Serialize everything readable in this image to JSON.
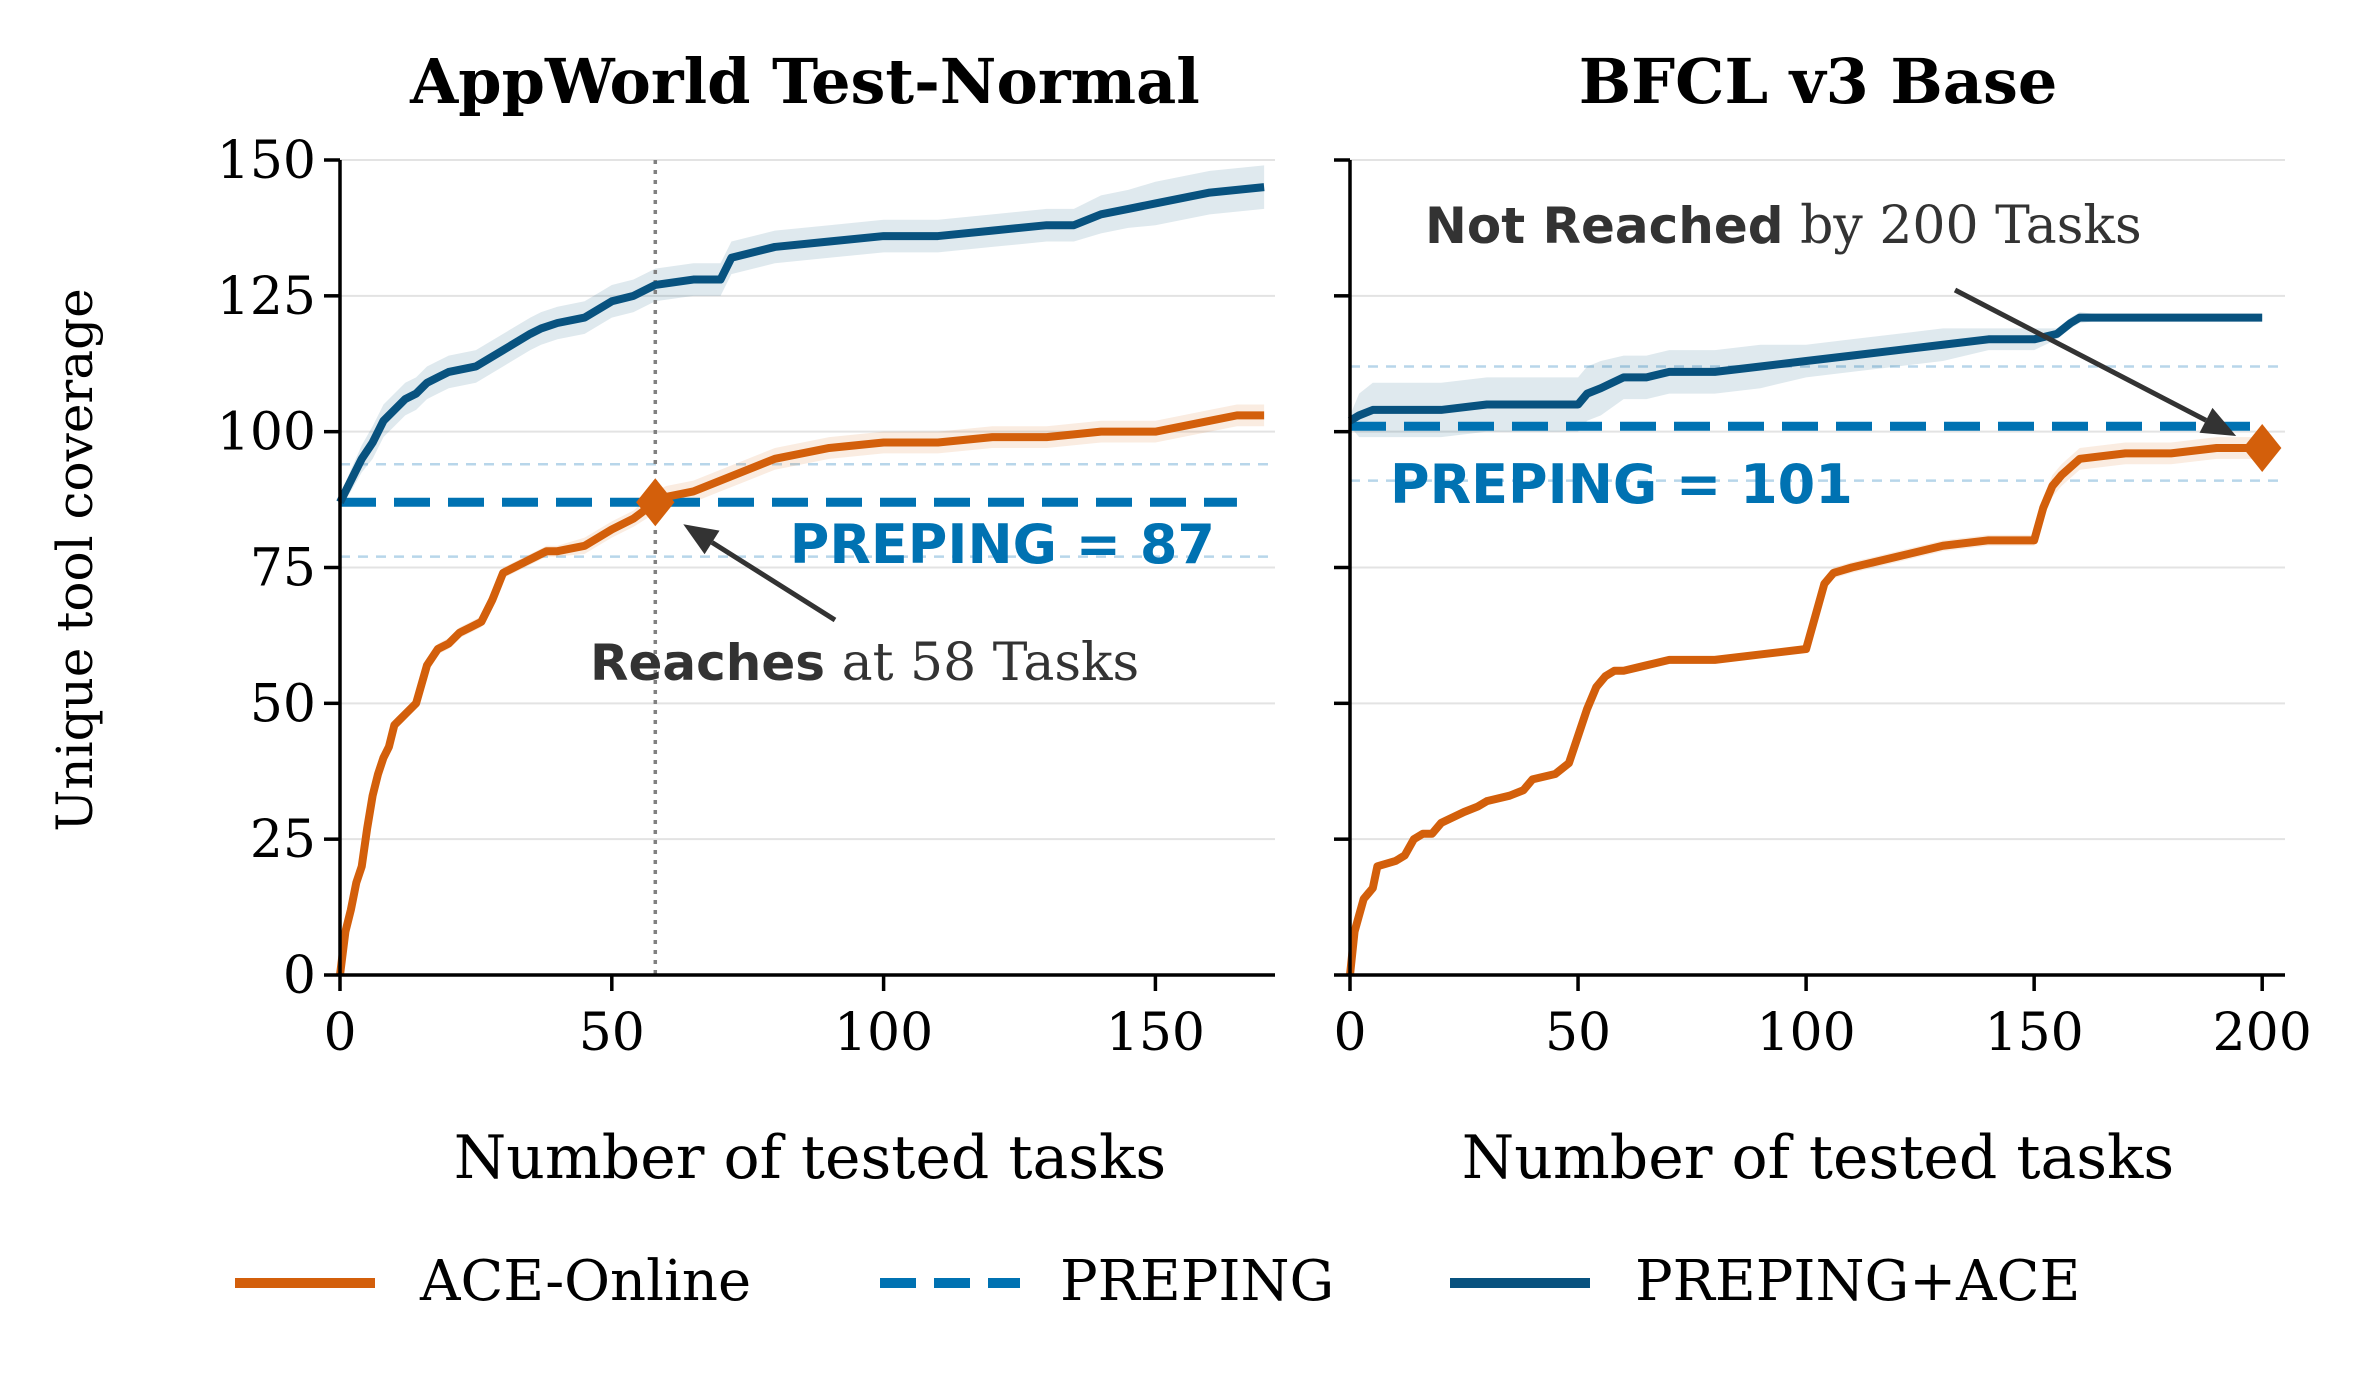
{
  "y_axis_label": "Unique tool coverage",
  "chart_data": [
    {
      "type": "line",
      "title": "AppWorld Test-Normal",
      "xlabel": "Number of tested tasks",
      "ylabel": "Unique tool coverage",
      "xlim": [
        0,
        172
      ],
      "ylim": [
        0,
        150
      ],
      "xticks": [
        0,
        50,
        100,
        150
      ],
      "yticks": [
        0,
        25,
        50,
        75,
        100,
        125,
        150
      ],
      "grid": "horizontal",
      "series": [
        {
          "name": "ACE-Online",
          "color": "#D35F0B",
          "style": "solid",
          "x": [
            0,
            1,
            2,
            3,
            4,
            5,
            6,
            7,
            8,
            9,
            10,
            11,
            12,
            14,
            16,
            18,
            20,
            22,
            24,
            26,
            28,
            30,
            32,
            34,
            36,
            38,
            40,
            45,
            50,
            54,
            58,
            60,
            65,
            70,
            75,
            80,
            90,
            100,
            110,
            120,
            130,
            140,
            150,
            160,
            165,
            170
          ],
          "y": [
            0,
            8,
            12,
            17,
            20,
            27,
            33,
            37,
            40,
            42,
            46,
            47,
            48,
            50,
            57,
            60,
            61,
            63,
            64,
            65,
            69,
            74,
            75,
            76,
            77,
            78,
            78,
            79,
            82,
            84,
            87,
            88,
            89,
            91,
            93,
            95,
            97,
            98,
            98,
            99,
            99,
            100,
            100,
            102,
            103,
            103
          ],
          "band": [
            0,
            1,
            1,
            1,
            1,
            1,
            1,
            1,
            1,
            1,
            1,
            1,
            1,
            1,
            1,
            1,
            1,
            1,
            1,
            1,
            1,
            1,
            1,
            1,
            1,
            1,
            1,
            1.5,
            1.5,
            1.5,
            2,
            2,
            2,
            2,
            2,
            2,
            2,
            2,
            2,
            2,
            2,
            2,
            2,
            2,
            2,
            2
          ]
        },
        {
          "name": "PREPING",
          "color": "#0072B2",
          "style": "dashed",
          "x": [
            0,
            165
          ],
          "y": [
            87,
            87
          ],
          "band_lines": [
            94,
            77
          ]
        },
        {
          "name": "PREPING+ACE",
          "color": "#08527F",
          "style": "solid",
          "x": [
            0,
            2,
            4,
            6,
            8,
            10,
            12,
            14,
            16,
            18,
            20,
            25,
            30,
            35,
            37,
            40,
            45,
            50,
            54,
            58,
            65,
            70,
            72,
            80,
            90,
            100,
            110,
            120,
            130,
            135,
            140,
            145,
            150,
            160,
            170
          ],
          "y": [
            87,
            91,
            95,
            98,
            102,
            104,
            106,
            107,
            109,
            110,
            111,
            112,
            115,
            118,
            119,
            120,
            121,
            124,
            125,
            127,
            128,
            128,
            132,
            134,
            135,
            136,
            136,
            137,
            138,
            138,
            140,
            141,
            142,
            144,
            145
          ],
          "band": [
            1,
            2,
            2.5,
            3,
            3,
            3,
            3,
            3,
            3,
            3,
            3,
            3,
            3,
            3,
            3,
            3,
            3,
            3,
            3,
            3,
            3,
            3,
            3,
            3,
            3,
            3,
            3,
            3,
            3,
            3,
            3.5,
            3.5,
            4,
            4,
            4
          ]
        }
      ],
      "marker": {
        "x": 58,
        "y": 87
      },
      "vline_x": 58,
      "preping_label": "PREPING = 87",
      "annotation": {
        "bold": "Reaches",
        "rest": " at 58 Tasks"
      }
    },
    {
      "type": "line",
      "title": "BFCL v3 Base",
      "xlabel": "Number of tested tasks",
      "xlim": [
        0,
        205
      ],
      "ylim": [
        0,
        150
      ],
      "xticks": [
        0,
        50,
        100,
        150,
        200
      ],
      "yticks": [
        0,
        25,
        50,
        75,
        100,
        125,
        150
      ],
      "grid": "horizontal",
      "series": [
        {
          "name": "ACE-Online",
          "color": "#D35F0B",
          "style": "solid",
          "x": [
            0,
            1,
            2,
            3,
            4,
            5,
            6,
            10,
            12,
            14,
            16,
            18,
            20,
            25,
            28,
            30,
            35,
            38,
            40,
            45,
            48,
            50,
            52,
            54,
            56,
            58,
            60,
            65,
            70,
            80,
            90,
            100,
            102,
            104,
            106,
            110,
            120,
            130,
            140,
            150,
            152,
            154,
            156,
            160,
            170,
            180,
            190,
            200
          ],
          "y": [
            0,
            8,
            11,
            14,
            15,
            16,
            20,
            21,
            22,
            25,
            26,
            26,
            28,
            30,
            31,
            32,
            33,
            34,
            36,
            37,
            39,
            44,
            49,
            53,
            55,
            56,
            56,
            57,
            58,
            58,
            59,
            60,
            66,
            72,
            74,
            75,
            77,
            79,
            80,
            80,
            86,
            90,
            92,
            95,
            96,
            96,
            97,
            97
          ],
          "band": [
            0,
            0.5,
            0.5,
            0.5,
            0.5,
            0.5,
            0.5,
            0.5,
            0.5,
            0.5,
            0.5,
            0.5,
            0.5,
            0.5,
            0.5,
            0.5,
            0.5,
            0.5,
            0.5,
            0.5,
            0.5,
            0.5,
            0.5,
            0.5,
            0.5,
            0.5,
            0.5,
            0.5,
            0.5,
            0.5,
            0.5,
            0.5,
            1,
            1,
            1,
            1,
            1,
            1,
            1,
            1,
            2,
            2,
            2,
            2,
            2,
            2,
            2,
            2
          ]
        },
        {
          "name": "PREPING",
          "color": "#0072B2",
          "style": "dashed",
          "x": [
            0,
            200
          ],
          "y": [
            101,
            101
          ],
          "band_lines": [
            112,
            91
          ]
        },
        {
          "name": "PREPING+ACE",
          "color": "#08527F",
          "style": "solid",
          "x": [
            0,
            2,
            5,
            10,
            20,
            30,
            40,
            50,
            52,
            55,
            60,
            65,
            70,
            80,
            90,
            100,
            110,
            120,
            130,
            140,
            150,
            155,
            158,
            160,
            165,
            170,
            180,
            190,
            200
          ],
          "y": [
            102,
            103,
            104,
            104,
            104,
            105,
            105,
            105,
            107,
            108,
            110,
            110,
            111,
            111,
            112,
            113,
            114,
            115,
            116,
            117,
            117,
            118,
            120,
            121,
            121,
            121,
            121,
            121,
            121
          ],
          "band": [
            1,
            4,
            5,
            5,
            5,
            5,
            5,
            5,
            5,
            5,
            4,
            4,
            4,
            4,
            4,
            3,
            3,
            3,
            3,
            2,
            2,
            1,
            1,
            1,
            0.5,
            0.5,
            0.5,
            0.5,
            0.5
          ]
        }
      ],
      "marker": {
        "x": 200,
        "y": 97
      },
      "preping_label": "PREPING = 101",
      "annotation": {
        "bold": "Not Reached",
        "rest": " by 200 Tasks"
      }
    }
  ],
  "legend": {
    "placement": "bottom",
    "items": [
      {
        "label": "ACE-Online",
        "color": "#D35F0B",
        "style": "solid"
      },
      {
        "label": "PREPING",
        "color": "#0072B2",
        "style": "dashed"
      },
      {
        "label": "PREPING+ACE",
        "color": "#08527F",
        "style": "solid"
      }
    ]
  }
}
